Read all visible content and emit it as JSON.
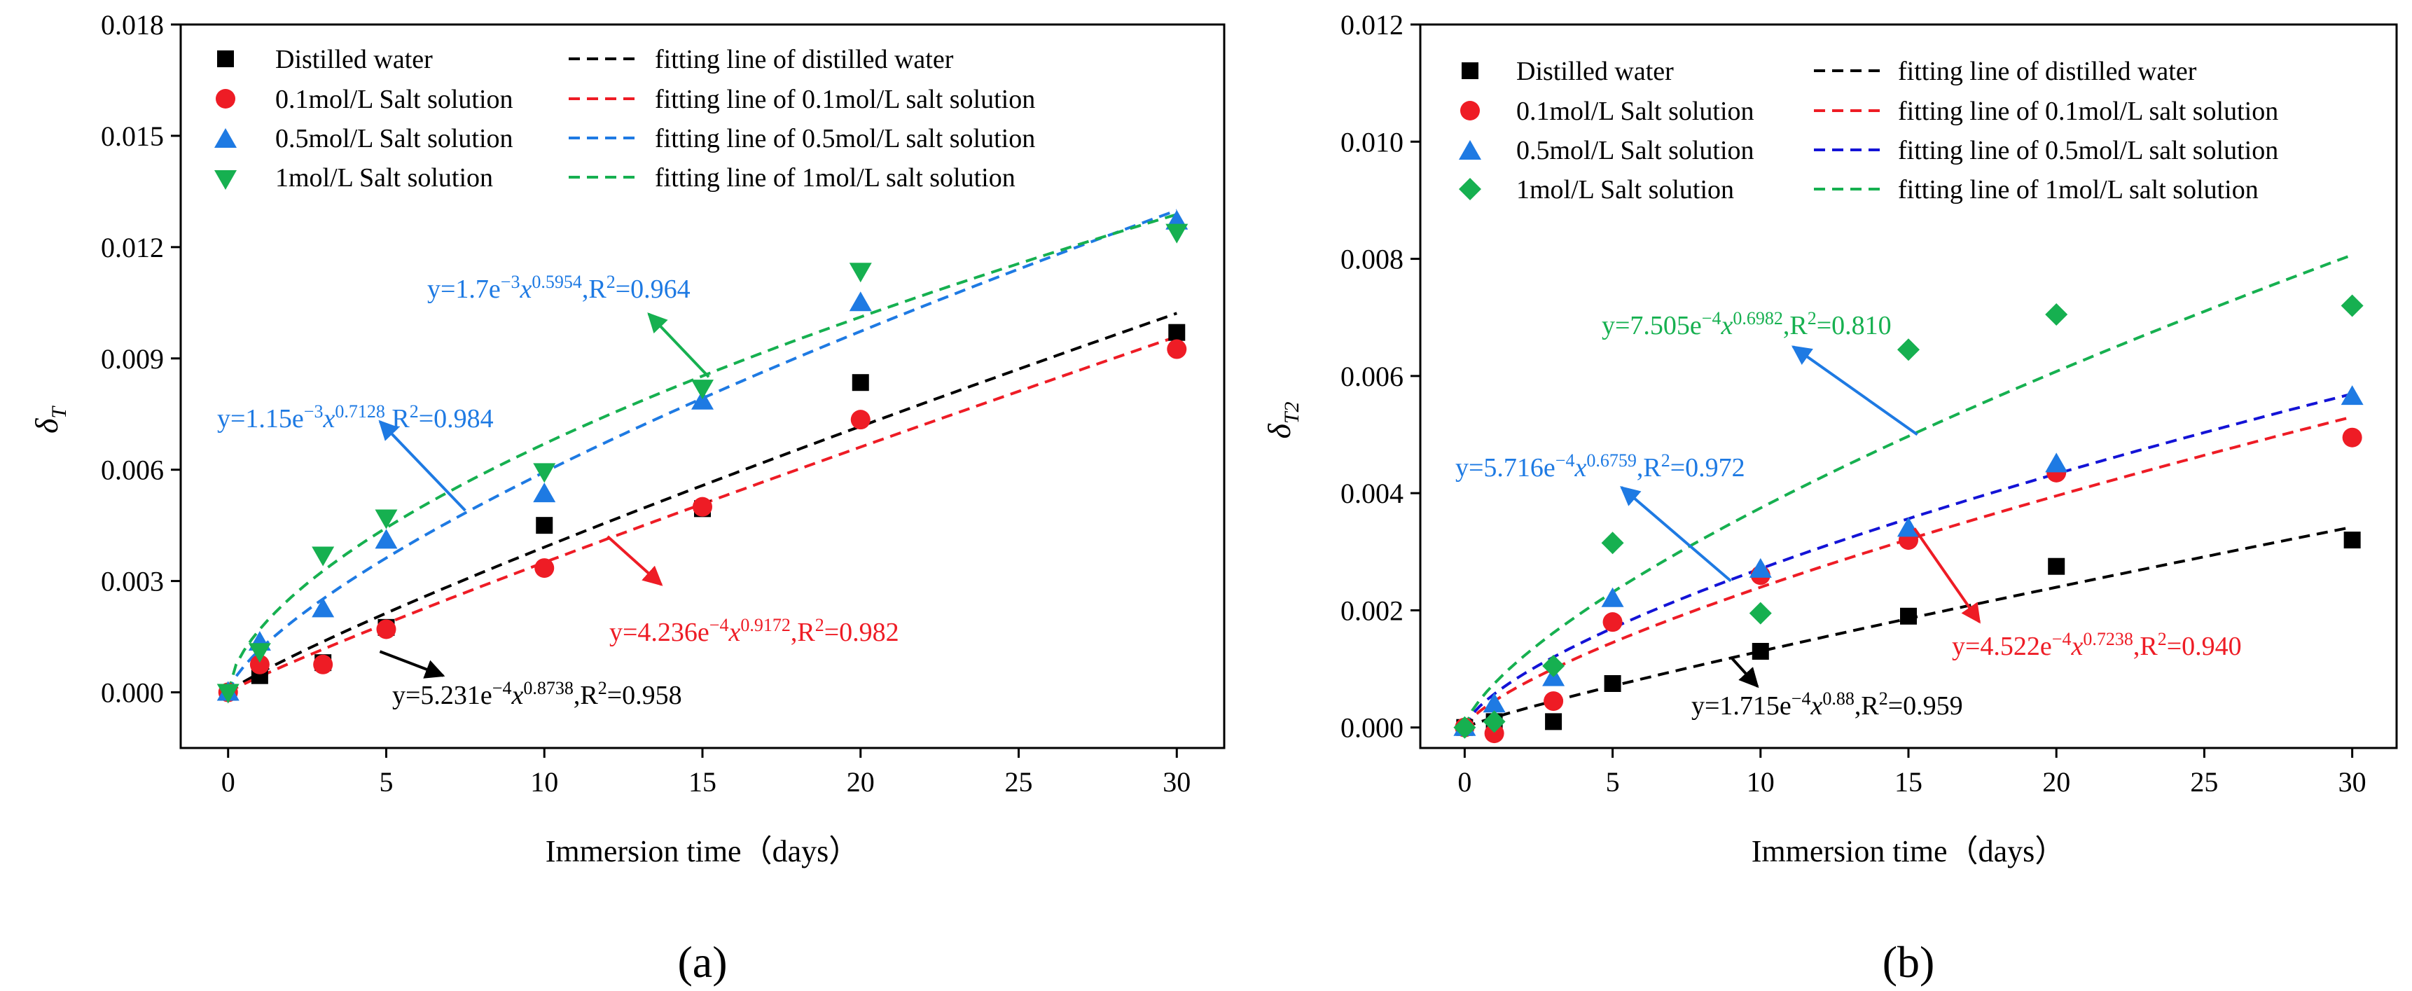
{
  "chart_data": [
    {
      "type": "scatter",
      "panel_label": "(a)",
      "panel_letter": "a",
      "xlabel": "Immersion time（days）",
      "ylabel_main": "δ",
      "ylabel_sub": "T",
      "xlim": [
        -1.5,
        31.5
      ],
      "ylim": [
        -0.0015,
        0.018
      ],
      "xticks": [
        0,
        5,
        10,
        15,
        20,
        25,
        30
      ],
      "xtick_labels": [
        "0",
        "5",
        "10",
        "15",
        "20",
        "25",
        "30"
      ],
      "yticks": [
        0,
        0.003,
        0.006,
        0.009,
        0.012,
        0.015,
        0.018
      ],
      "ytick_labels": [
        "0.000",
        "0.003",
        "0.006",
        "0.009",
        "0.012",
        "0.015",
        "0.018"
      ],
      "series": [
        {
          "name": "Distilled water",
          "fit_name": "fitting line of distilled water",
          "marker": "square",
          "color": "#000000",
          "x": [
            0,
            1,
            3,
            5,
            10,
            15,
            20,
            30
          ],
          "y": [
            0.0,
            0.00045,
            0.0008,
            0.00175,
            0.0045,
            0.00495,
            0.00835,
            0.0097
          ],
          "fit": {
            "a": 0.0005231,
            "b": 0.8738
          },
          "equation": {
            "prefix": "y=5.231e",
            "exp1": "−4",
            "xsym": "x",
            "exp2": "0.8738",
            "suffix": ",R",
            "r2exp": "2",
            "r2val": "=0.958"
          },
          "annotation_arrow": {
            "from_x": 4.8,
            "from_y": 0.0011,
            "to_x": 6.8,
            "to_y": 0.00045
          }
        },
        {
          "name": "0.1mol/L Salt solution",
          "fit_name": "fitting line of 0.1mol/L salt solution",
          "marker": "circle",
          "color": "#ee1c25",
          "x": [
            0,
            1,
            3,
            5,
            10,
            15,
            20,
            30
          ],
          "y": [
            0.0,
            0.00075,
            0.00075,
            0.0017,
            0.00335,
            0.005,
            0.00735,
            0.00925
          ],
          "fit": {
            "a": 0.0004236,
            "b": 0.9172
          },
          "equation": {
            "prefix": "y=4.236e",
            "exp1": "−4",
            "xsym": "x",
            "exp2": "0.9172",
            "suffix": ",R",
            "r2exp": "2",
            "r2val": "=0.982"
          },
          "annotation_arrow": {
            "from_x": 12.0,
            "from_y": 0.0042,
            "to_x": 13.7,
            "to_y": 0.0029
          }
        },
        {
          "name": "0.5mol/L Salt solution",
          "fit_name": "fitting line of 0.5mol/L salt solution",
          "marker": "triangle-up",
          "color": "#1e7ae3",
          "x": [
            0,
            1,
            3,
            5,
            10,
            15,
            20,
            30
          ],
          "y": [
            0.0,
            0.00135,
            0.00225,
            0.0041,
            0.00535,
            0.00785,
            0.0105,
            0.0127
          ],
          "fit": {
            "a": 0.00115,
            "b": 0.7128
          },
          "equation": {
            "prefix": "y=1.15e",
            "exp1": "−3",
            "xsym": "x",
            "exp2": "0.7128",
            "suffix": ",R",
            "r2exp": "2",
            "r2val": "=0.984"
          },
          "annotation_arrow": {
            "from_x": 7.5,
            "from_y": 0.0049,
            "to_x": 4.8,
            "to_y": 0.0073
          }
        },
        {
          "name": "1mol/L Salt solution",
          "fit_name": "fitting line of 1mol/L salt solution",
          "marker": "triangle-down",
          "color": "#16b050",
          "x": [
            0,
            1,
            3,
            5,
            10,
            15,
            20,
            30
          ],
          "y": [
            0.0,
            0.0011,
            0.0037,
            0.0047,
            0.00595,
            0.0082,
            0.01135,
            0.0124
          ],
          "fit": {
            "a": 0.0017,
            "b": 0.5954
          },
          "equation": {
            "prefix": "y=1.7e",
            "exp1": "−3",
            "xsym": "x",
            "exp2": "0.5954",
            "suffix": ",R",
            "r2exp": "2",
            "r2val": "=0.964"
          },
          "annotation_arrow": {
            "from_x": 15.2,
            "from_y": 0.0085,
            "to_x": 13.3,
            "to_y": 0.0102
          }
        }
      ]
    },
    {
      "type": "scatter",
      "panel_label": "(b)",
      "panel_letter": "b",
      "xlabel": "Immersion time（days）",
      "ylabel_main": "δ",
      "ylabel_sub": "T2",
      "xlim": [
        -1.5,
        31.5
      ],
      "ylim": [
        -0.00035,
        0.012
      ],
      "xticks": [
        0,
        5,
        10,
        15,
        20,
        25,
        30
      ],
      "xtick_labels": [
        "0",
        "5",
        "10",
        "15",
        "20",
        "25",
        "30"
      ],
      "yticks": [
        0,
        0.002,
        0.004,
        0.006,
        0.008,
        0.01,
        0.012
      ],
      "ytick_labels": [
        "0.000",
        "0.002",
        "0.004",
        "0.006",
        "0.008",
        "0.010",
        "0.012"
      ],
      "series": [
        {
          "name": "Distilled water",
          "fit_name": "fitting line of distilled water",
          "marker": "square",
          "color": "#000000",
          "x": [
            0,
            1,
            3,
            5,
            10,
            15,
            20,
            30
          ],
          "y": [
            0.0,
            0.0001,
            0.0001,
            0.00075,
            0.0013,
            0.0019,
            0.00275,
            0.0032
          ],
          "fit": {
            "a": 0.0001715,
            "b": 0.88
          },
          "equation": {
            "prefix": "y=1.715e",
            "exp1": "−4",
            "xsym": "x",
            "exp2": "0.88",
            "suffix": ",R",
            "r2exp": "2",
            "r2val": "=0.959"
          },
          "annotation_arrow": {
            "from_x": 9.0,
            "from_y": 0.0012,
            "to_x": 9.9,
            "to_y": 0.0007
          }
        },
        {
          "name": "0.1mol/L Salt solution",
          "fit_name": "fitting line of 0.1mol/L salt solution",
          "marker": "circle",
          "color": "#ee1c25",
          "x": [
            0,
            1,
            3,
            5,
            10,
            15,
            20,
            30
          ],
          "y": [
            0.0,
            -0.0001,
            0.00045,
            0.0018,
            0.0026,
            0.0032,
            0.00435,
            0.00495
          ],
          "fit": {
            "a": 0.0004522,
            "b": 0.7238
          },
          "equation": {
            "prefix": "y=4.522e",
            "exp1": "−4",
            "xsym": "x",
            "exp2": "0.7238",
            "suffix": ",R",
            "r2exp": "2",
            "r2val": "=0.940"
          },
          "annotation_arrow": {
            "from_x": 15.2,
            "from_y": 0.0034,
            "to_x": 17.4,
            "to_y": 0.0018
          }
        },
        {
          "name": "0.5mol/L Salt solution",
          "fit_name": "fitting line of 0.5mol/L salt solution",
          "marker": "triangle-up",
          "color": "#1e7ae3",
          "x": [
            0,
            1,
            3,
            5,
            10,
            15,
            20,
            30
          ],
          "y": [
            0.0,
            0.0004,
            0.00085,
            0.0022,
            0.0027,
            0.0034,
            0.0045,
            0.00565
          ],
          "fit": {
            "a": 0.0005716,
            "b": 0.6759
          },
          "equation": {
            "prefix": "y=5.716e",
            "exp1": "−4",
            "xsym": "x",
            "exp2": "0.6759",
            "suffix": ",R",
            "r2exp": "2",
            "r2val": "=0.972"
          },
          "annotation_arrow": {
            "from_x": 9.0,
            "from_y": 0.0025,
            "to_x": 5.3,
            "to_y": 0.0041
          }
        },
        {
          "name": "1mol/L Salt solution",
          "fit_name": "fitting line of 1mol/L salt solution",
          "marker": "diamond",
          "color": "#16b050",
          "x": [
            0,
            1,
            3,
            5,
            10,
            15,
            20,
            30
          ],
          "y": [
            0.0,
            0.0001,
            0.00105,
            0.00315,
            0.00195,
            0.00645,
            0.00705,
            0.0072
          ],
          "fit": {
            "a": 0.0007505,
            "b": 0.6982
          },
          "equation": {
            "prefix": "y=7.505e",
            "exp1": "−4",
            "xsym": "x",
            "exp2": "0.6982",
            "suffix": ",R",
            "r2exp": "2",
            "r2val": "=0.810"
          },
          "annotation_arrow": {
            "from_x": 15.3,
            "from_y": 0.005,
            "to_x": 11.1,
            "to_y": 0.0065
          }
        }
      ]
    }
  ]
}
